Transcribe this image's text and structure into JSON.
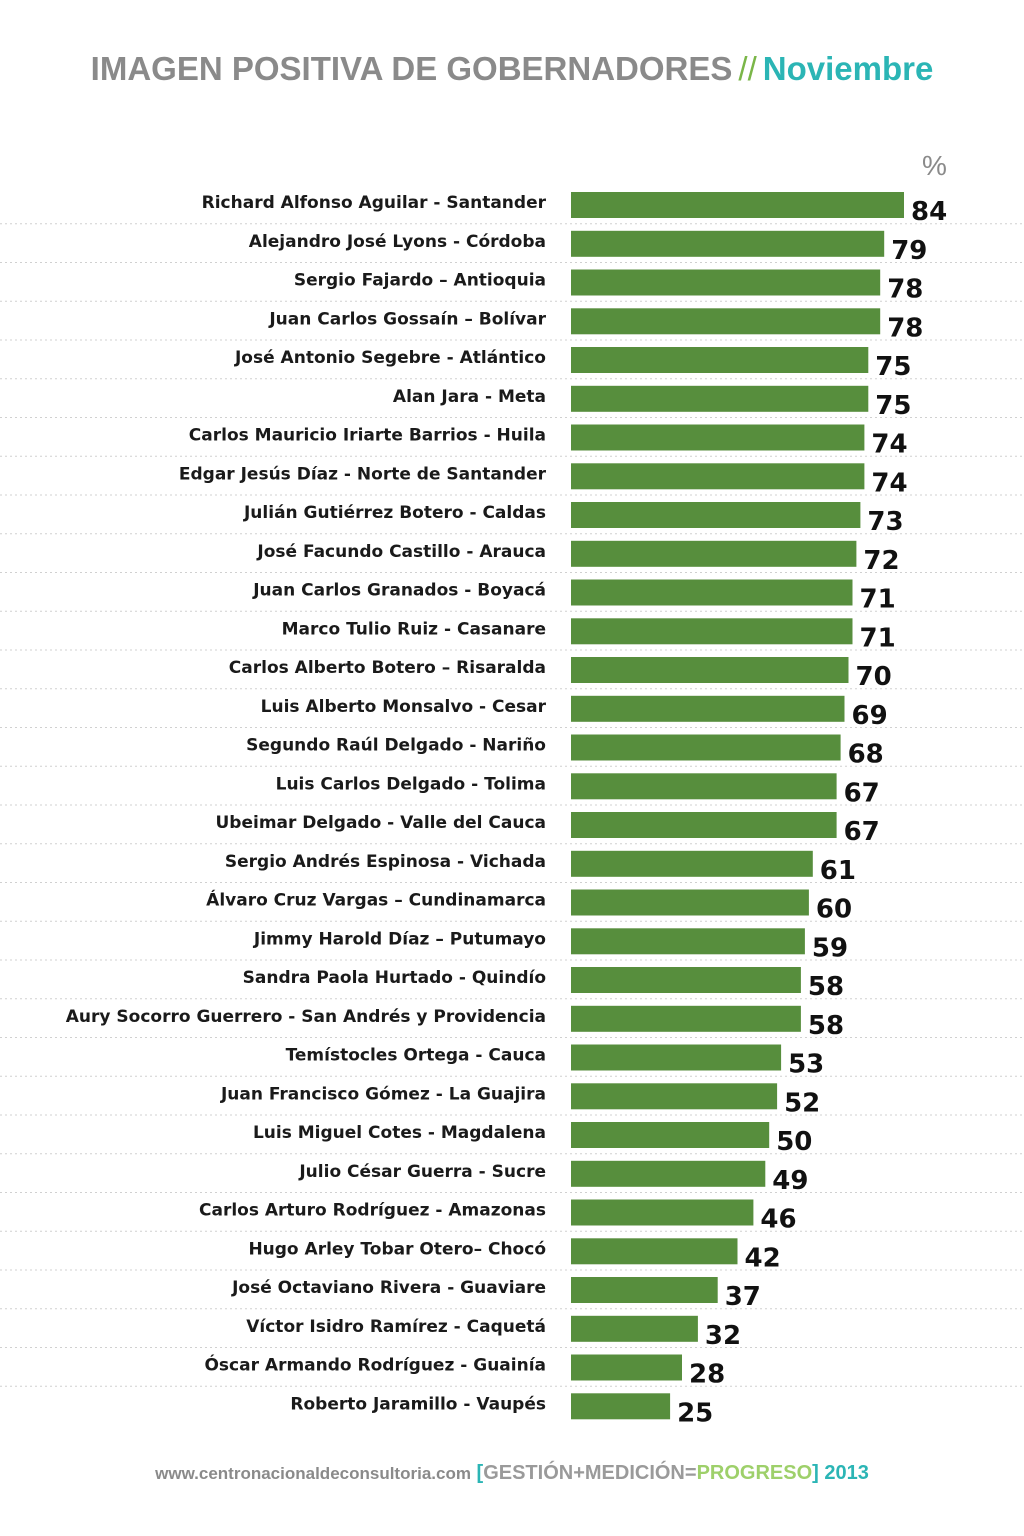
{
  "header": {
    "title_main": "IMAGEN POSITIVA DE GOBERNADORES",
    "title_sep": "//",
    "title_month": "Noviembre",
    "unit": "%"
  },
  "footer": {
    "url": "www.centronacionaldeconsultoria.com",
    "bracket_open": "[",
    "slogan_part1": "GESTIÓN+MEDICIÓN=",
    "slogan_part2": "PROGRESO",
    "bracket_close": "]",
    "year": "2013"
  },
  "colors": {
    "bar": "#578e3d",
    "title_gray": "#8a8a8a",
    "accent_teal": "#2bb5b5",
    "accent_green": "#7ab648",
    "separator": "#d0d0d0"
  },
  "chart_data": {
    "type": "bar",
    "orientation": "horizontal",
    "title": "IMAGEN POSITIVA DE GOBERNADORES // Noviembre",
    "unit": "%",
    "categories": [
      "Richard Alfonso Aguilar - Santander",
      "Alejandro José Lyons - Córdoba",
      "Sergio Fajardo – Antioquia",
      "Juan Carlos Gossaín – Bolívar",
      "José Antonio Segebre - Atlántico",
      "Alan Jara - Meta",
      "Carlos Mauricio Iriarte Barrios - Huila",
      "Edgar Jesús Díaz - Norte de Santander",
      "Julián Gutiérrez Botero  - Caldas",
      "José Facundo Castillo - Arauca",
      "Juan Carlos Granados - Boyacá",
      "Marco Tulio Ruiz - Casanare",
      "Carlos Alberto Botero – Risaralda",
      "Luis Alberto Monsalvo - Cesar",
      "Segundo Raúl Delgado - Nariño",
      "Luis Carlos Delgado - Tolima",
      "Ubeimar Delgado - Valle del Cauca",
      "Sergio Andrés Espinosa - Vichada",
      "Álvaro Cruz Vargas – Cundinamarca",
      "Jimmy Harold Díaz – Putumayo",
      "Sandra Paola Hurtado - Quindío",
      "Aury Socorro Guerrero - San Andrés y Providencia",
      "Temístocles Ortega - Cauca",
      "Juan Francisco Gómez - La Guajira",
      "Luis Miguel Cotes - Magdalena",
      "Julio César Guerra - Sucre",
      "Carlos Arturo Rodríguez - Amazonas",
      "Hugo Arley Tobar Otero– Chocó",
      "José Octaviano Rivera - Guaviare",
      "Víctor Isidro Ramírez - Caquetá",
      "Óscar Armando Rodríguez - Guainía",
      "Roberto Jaramillo - Vaupés"
    ],
    "values": [
      84,
      79,
      78,
      78,
      75,
      75,
      74,
      74,
      73,
      72,
      71,
      71,
      70,
      69,
      68,
      67,
      67,
      61,
      60,
      59,
      58,
      58,
      53,
      52,
      50,
      49,
      46,
      42,
      37,
      32,
      28,
      25
    ],
    "xlim": [
      0,
      84
    ],
    "grid": false,
    "legend": "none"
  }
}
